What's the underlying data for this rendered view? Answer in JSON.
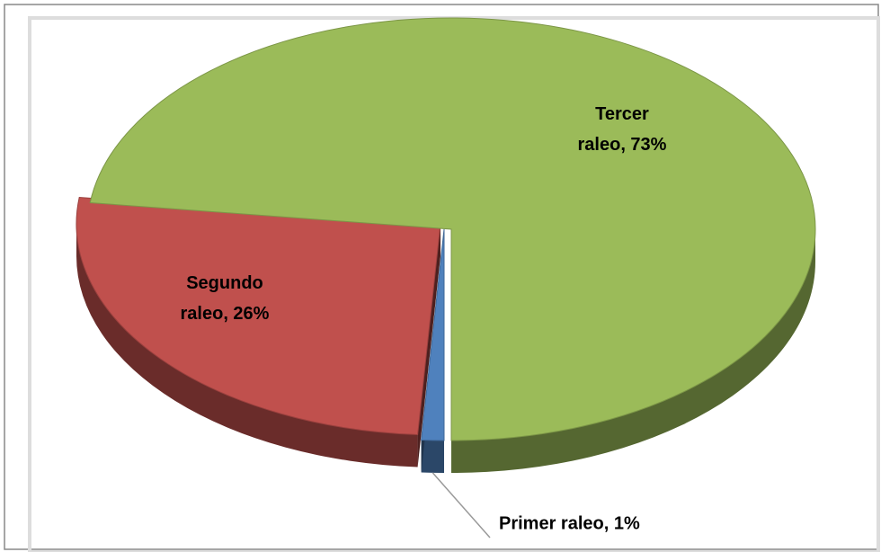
{
  "chart_data": {
    "type": "pie",
    "values": [
      1,
      26,
      73
    ],
    "value_labels": [
      "Primer raleo, 1%",
      "Segundo raleo, 26%",
      "Tercer raleo, 73%"
    ],
    "colors": [
      "#4f81bd",
      "#c0504d",
      "#9bbb59"
    ]
  }
}
